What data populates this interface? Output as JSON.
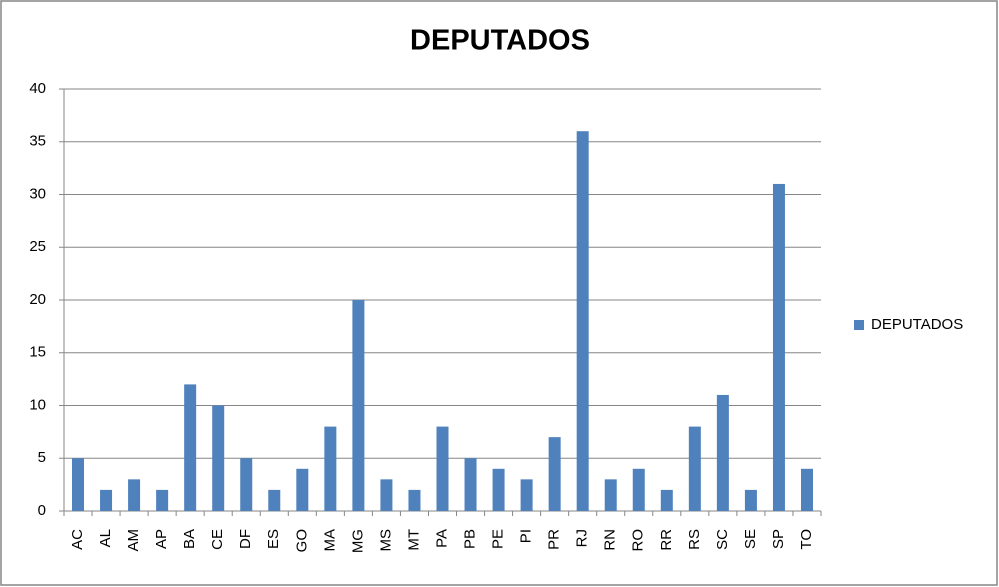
{
  "chart_data": {
    "type": "bar",
    "title": "DEPUTADOS",
    "categories": [
      "AC",
      "AL",
      "AM",
      "AP",
      "BA",
      "CE",
      "DF",
      "ES",
      "GO",
      "MA",
      "MG",
      "MS",
      "MT",
      "PA",
      "PB",
      "PE",
      "PI",
      "PR",
      "RJ",
      "RN",
      "RO",
      "RR",
      "RS",
      "SC",
      "SE",
      "SP",
      "TO"
    ],
    "series": [
      {
        "name": "DEPUTADOS",
        "color": "#4f81bd",
        "values": [
          5,
          2,
          3,
          2,
          12,
          10,
          5,
          2,
          4,
          8,
          20,
          3,
          2,
          8,
          5,
          4,
          3,
          7,
          36,
          3,
          4,
          2,
          8,
          11,
          2,
          31,
          4
        ]
      }
    ],
    "ylim": [
      0,
      40
    ],
    "yticks": [
      0,
      5,
      10,
      15,
      20,
      25,
      30,
      35,
      40
    ],
    "grid": true,
    "legend": "right"
  }
}
